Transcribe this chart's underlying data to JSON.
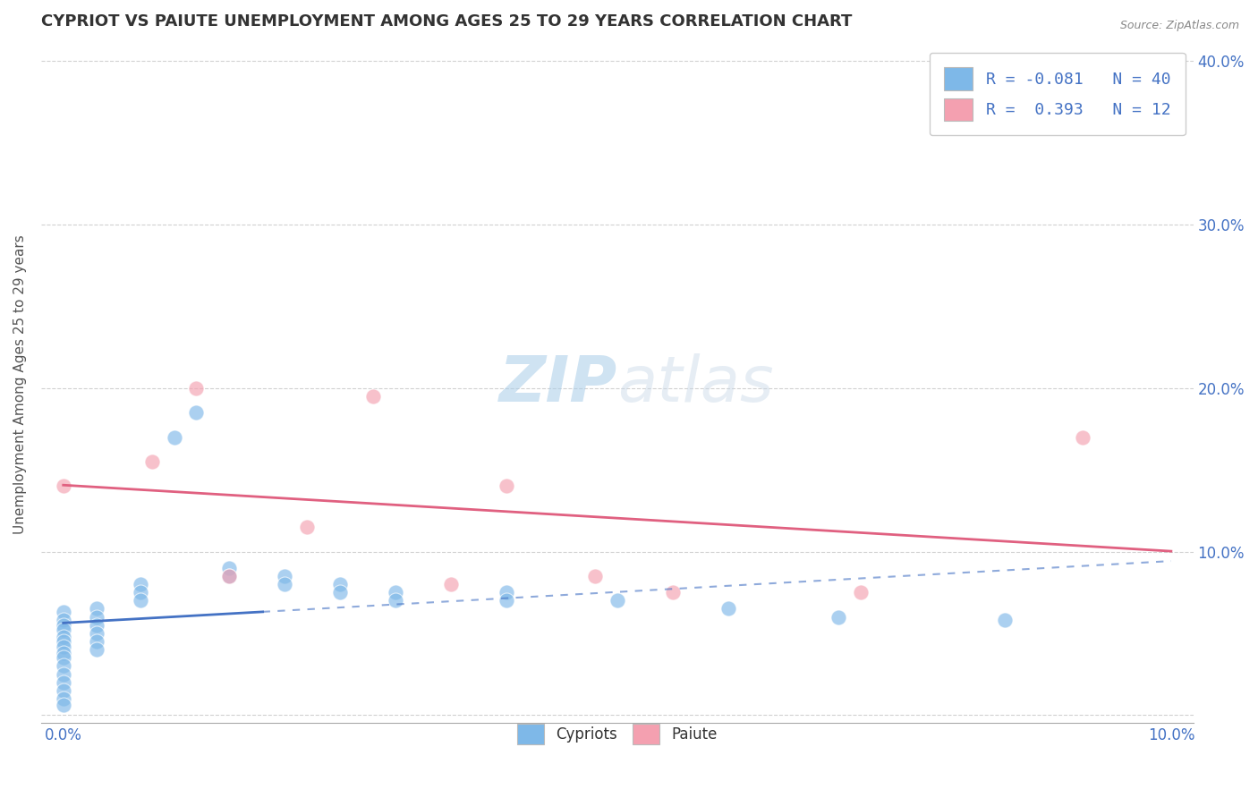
{
  "title": "CYPRIOT VS PAIUTE UNEMPLOYMENT AMONG AGES 25 TO 29 YEARS CORRELATION CHART",
  "source": "Source: ZipAtlas.com",
  "xlabel": "",
  "ylabel": "Unemployment Among Ages 25 to 29 years",
  "xlim": [
    -0.002,
    0.102
  ],
  "ylim": [
    -0.005,
    0.41
  ],
  "xticks": [
    0.0,
    0.1
  ],
  "yticks": [
    0.0,
    0.1,
    0.2,
    0.3,
    0.4
  ],
  "xtick_labels": [
    "0.0%",
    "10.0%"
  ],
  "ytick_labels": [
    "",
    "10.0%",
    "20.0%",
    "30.0%",
    "40.0%"
  ],
  "cypriot_R": -0.081,
  "cypriot_N": 40,
  "paiute_R": 0.393,
  "paiute_N": 12,
  "cypriot_color": "#7eb8e8",
  "paiute_color": "#f4a0b0",
  "cypriot_line_color": "#4472c4",
  "paiute_line_color": "#e06080",
  "cypriot_points": [
    [
      0.0,
      0.063
    ],
    [
      0.0,
      0.058
    ],
    [
      0.0,
      0.055
    ],
    [
      0.0,
      0.052
    ],
    [
      0.0,
      0.048
    ],
    [
      0.0,
      0.045
    ],
    [
      0.0,
      0.042
    ],
    [
      0.0,
      0.038
    ],
    [
      0.0,
      0.035
    ],
    [
      0.0,
      0.03
    ],
    [
      0.0,
      0.025
    ],
    [
      0.0,
      0.02
    ],
    [
      0.0,
      0.015
    ],
    [
      0.0,
      0.01
    ],
    [
      0.0,
      0.006
    ],
    [
      0.003,
      0.065
    ],
    [
      0.003,
      0.06
    ],
    [
      0.003,
      0.055
    ],
    [
      0.003,
      0.05
    ],
    [
      0.003,
      0.045
    ],
    [
      0.003,
      0.04
    ],
    [
      0.007,
      0.08
    ],
    [
      0.007,
      0.075
    ],
    [
      0.007,
      0.07
    ],
    [
      0.01,
      0.17
    ],
    [
      0.012,
      0.185
    ],
    [
      0.015,
      0.09
    ],
    [
      0.015,
      0.085
    ],
    [
      0.02,
      0.085
    ],
    [
      0.02,
      0.08
    ],
    [
      0.025,
      0.08
    ],
    [
      0.025,
      0.075
    ],
    [
      0.03,
      0.075
    ],
    [
      0.03,
      0.07
    ],
    [
      0.04,
      0.075
    ],
    [
      0.04,
      0.07
    ],
    [
      0.05,
      0.07
    ],
    [
      0.06,
      0.065
    ],
    [
      0.07,
      0.06
    ],
    [
      0.085,
      0.058
    ]
  ],
  "paiute_points": [
    [
      0.0,
      0.14
    ],
    [
      0.008,
      0.155
    ],
    [
      0.012,
      0.2
    ],
    [
      0.015,
      0.085
    ],
    [
      0.022,
      0.115
    ],
    [
      0.028,
      0.195
    ],
    [
      0.035,
      0.08
    ],
    [
      0.04,
      0.14
    ],
    [
      0.048,
      0.085
    ],
    [
      0.055,
      0.075
    ],
    [
      0.072,
      0.075
    ],
    [
      0.092,
      0.17
    ]
  ],
  "watermark_zip": "ZIP",
  "watermark_atlas": "atlas",
  "legend_fontsize": 13,
  "title_fontsize": 13,
  "axis_label_fontsize": 11,
  "tick_fontsize": 12,
  "background_color": "#ffffff",
  "grid_color": "#cccccc"
}
